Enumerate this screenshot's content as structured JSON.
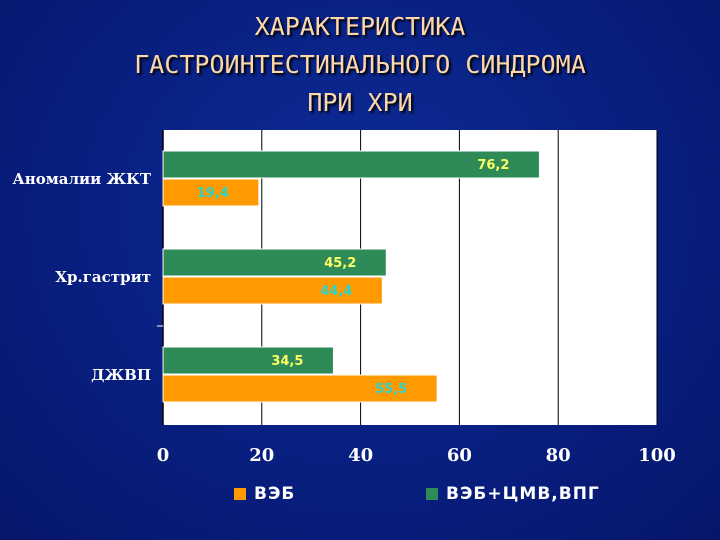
{
  "title_lines": [
    "ХАРАКТЕРИСТИКА",
    "ГАСТРОИНТЕСТИНАЛЬНОГО СИНДРОМА",
    "ПРИ ХРИ"
  ],
  "chart_data": {
    "type": "bar",
    "orientation": "horizontal",
    "categories": [
      "Аномалии ЖКТ",
      "Хр.гастрит",
      "ДЖВП"
    ],
    "series": [
      {
        "name": "ВЭБ+ЦМВ,ВПГ",
        "values": [
          76.2,
          45.2,
          34.5
        ],
        "labels": [
          "76,2",
          "45,2",
          "34,5"
        ],
        "color": "#2e8b57",
        "label_color": "#ffff66"
      },
      {
        "name": "ВЭБ",
        "values": [
          19.4,
          44.4,
          55.5
        ],
        "labels": [
          "19,4",
          "44,4",
          "55,5"
        ],
        "color": "#ff9a00",
        "label_color": "#2ad4c8"
      }
    ],
    "xlim": [
      0,
      100
    ],
    "xticks": [
      "0",
      "20",
      "40",
      "60",
      "80",
      "100"
    ],
    "grid": true,
    "legend_placement": "bottom",
    "plot_background": "#ffffff",
    "gridline_color": "#000000"
  },
  "legend": {
    "items": [
      {
        "label": "ВЭБ",
        "color": "#ff9a00"
      },
      {
        "label": "ВЭБ+ЦМВ,ВПГ",
        "color": "#2e8b57"
      }
    ]
  }
}
